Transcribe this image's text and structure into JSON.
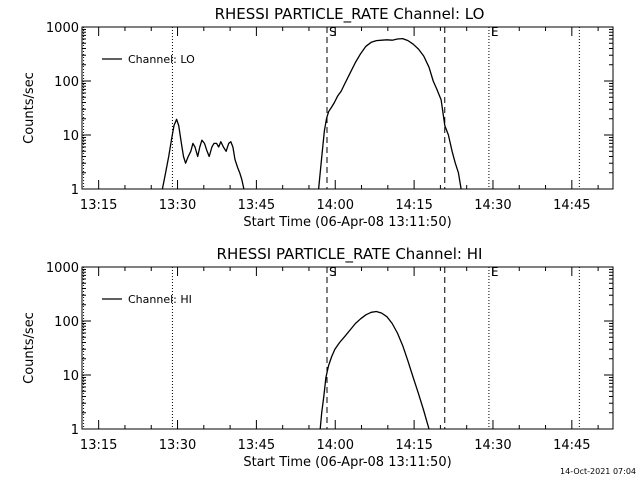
{
  "footer_timestamp": "14-Oct-2021 07:04",
  "chart_data": [
    {
      "type": "line",
      "title": "RHESSI PARTICLE_RATE Channel: LO",
      "xlabel": "Start Time (06-Apr-08 13:11:50)",
      "ylabel": "Counts/sec",
      "x_unit": "minutes after 13:11:50",
      "xlim": [
        0,
        101
      ],
      "ylim": [
        1,
        1000
      ],
      "yscale": "log",
      "x_ticks": [
        3.17,
        18.17,
        33.17,
        48.17,
        63.17,
        78.17,
        93.17
      ],
      "x_tick_labels": [
        "13:15",
        "13:30",
        "13:45",
        "14:00",
        "14:15",
        "14:30",
        "14:45"
      ],
      "y_ticks": [
        1,
        10,
        100,
        1000
      ],
      "y_tick_labels": [
        "1",
        "10",
        "100",
        "1000"
      ],
      "legend": {
        "label": "Channel: LO",
        "position": "top-left"
      },
      "markers": [
        {
          "x": 0.3,
          "style": "dotted"
        },
        {
          "x": 17.2,
          "style": "dotted"
        },
        {
          "x": 46.6,
          "style": "dashed",
          "label": "S"
        },
        {
          "x": 69.0,
          "style": "dashed"
        },
        {
          "x": 77.4,
          "style": "dotted",
          "label": "E"
        },
        {
          "x": 94.6,
          "style": "dotted"
        }
      ],
      "series": [
        {
          "name": "Channel: LO",
          "segments": [
            [
              [
                15.3,
                1
              ],
              [
                15.9,
                2
              ],
              [
                16.5,
                4
              ],
              [
                17.0,
                8
              ],
              [
                17.5,
                15
              ],
              [
                18.0,
                19.5
              ],
              [
                18.4,
                15
              ],
              [
                18.9,
                7
              ],
              [
                19.3,
                4
              ],
              [
                19.7,
                3
              ],
              [
                20.2,
                4
              ],
              [
                20.7,
                5
              ],
              [
                21.1,
                7
              ],
              [
                21.5,
                6
              ],
              [
                22.0,
                4
              ],
              [
                22.4,
                6
              ],
              [
                22.8,
                8
              ],
              [
                23.3,
                7
              ],
              [
                23.8,
                5
              ],
              [
                24.2,
                4
              ],
              [
                24.7,
                6
              ],
              [
                25.1,
                7
              ],
              [
                25.6,
                7
              ],
              [
                26.0,
                6
              ],
              [
                26.4,
                7.5
              ],
              [
                26.9,
                6
              ],
              [
                27.4,
                5
              ],
              [
                27.9,
                7
              ],
              [
                28.3,
                7.5
              ],
              [
                28.7,
                6
              ],
              [
                29.1,
                3.5
              ],
              [
                29.6,
                2.5
              ],
              [
                30.0,
                2
              ],
              [
                30.4,
                1.5
              ],
              [
                30.8,
                1
              ]
            ],
            [
              [
                45.0,
                1
              ],
              [
                45.3,
                2
              ],
              [
                45.7,
                5
              ],
              [
                46.1,
                12
              ],
              [
                46.5,
                20
              ],
              [
                46.9,
                27
              ],
              [
                47.5,
                33
              ],
              [
                48.0,
                40
              ],
              [
                48.6,
                52
              ],
              [
                49.3,
                65
              ],
              [
                50.0,
                90
              ],
              [
                51.0,
                140
              ],
              [
                52.0,
                220
              ],
              [
                53.0,
                320
              ],
              [
                54.0,
                440
              ],
              [
                55.0,
                520
              ],
              [
                56.0,
                560
              ],
              [
                57.0,
                570
              ],
              [
                58.0,
                580
              ],
              [
                59.0,
                570
              ],
              [
                60.0,
                600
              ],
              [
                61.0,
                610
              ],
              [
                62.0,
                560
              ],
              [
                63.0,
                480
              ],
              [
                64.0,
                390
              ],
              [
                65.0,
                290
              ],
              [
                66.0,
                180
              ],
              [
                66.8,
                100
              ],
              [
                67.5,
                70
              ],
              [
                68.3,
                45
              ],
              [
                69.0,
                15
              ],
              [
                69.7,
                10
              ],
              [
                70.4,
                5
              ],
              [
                71.0,
                3
              ],
              [
                71.6,
                2
              ],
              [
                72.1,
                1
              ]
            ]
          ]
        }
      ]
    },
    {
      "type": "line",
      "title": "RHESSI PARTICLE_RATE Channel: HI",
      "xlabel": "Start Time (06-Apr-08 13:11:50)",
      "ylabel": "Counts/sec",
      "x_unit": "minutes after 13:11:50",
      "xlim": [
        0,
        101
      ],
      "ylim": [
        1,
        1000
      ],
      "yscale": "log",
      "x_ticks": [
        3.17,
        18.17,
        33.17,
        48.17,
        63.17,
        78.17,
        93.17
      ],
      "x_tick_labels": [
        "13:15",
        "13:30",
        "13:45",
        "14:00",
        "14:15",
        "14:30",
        "14:45"
      ],
      "y_ticks": [
        1,
        10,
        100,
        1000
      ],
      "y_tick_labels": [
        "1",
        "10",
        "100",
        "1000"
      ],
      "legend": {
        "label": "Channel: HI",
        "position": "top-left"
      },
      "markers": [
        {
          "x": 0.3,
          "style": "dotted"
        },
        {
          "x": 17.2,
          "style": "dotted"
        },
        {
          "x": 46.6,
          "style": "dashed",
          "label": "S"
        },
        {
          "x": 69.0,
          "style": "dashed"
        },
        {
          "x": 77.4,
          "style": "dotted",
          "label": "E"
        },
        {
          "x": 94.6,
          "style": "dotted"
        }
      ],
      "series": [
        {
          "name": "Channel: HI",
          "segments": [
            [
              [
                45.3,
                1
              ],
              [
                45.6,
                2
              ],
              [
                46.0,
                4
              ],
              [
                46.4,
                9
              ],
              [
                46.9,
                15
              ],
              [
                47.5,
                22
              ],
              [
                48.1,
                30
              ],
              [
                49.0,
                40
              ],
              [
                50.0,
                52
              ],
              [
                51.0,
                68
              ],
              [
                52.0,
                90
              ],
              [
                53.0,
                110
              ],
              [
                54.0,
                130
              ],
              [
                55.0,
                145
              ],
              [
                56.0,
                150
              ],
              [
                57.0,
                140
              ],
              [
                58.0,
                120
              ],
              [
                59.0,
                90
              ],
              [
                60.0,
                60
              ],
              [
                61.0,
                35
              ],
              [
                62.0,
                18
              ],
              [
                63.0,
                9
              ],
              [
                64.0,
                4.5
              ],
              [
                65.0,
                2.2
              ],
              [
                66.0,
                1
              ]
            ]
          ]
        }
      ]
    }
  ]
}
